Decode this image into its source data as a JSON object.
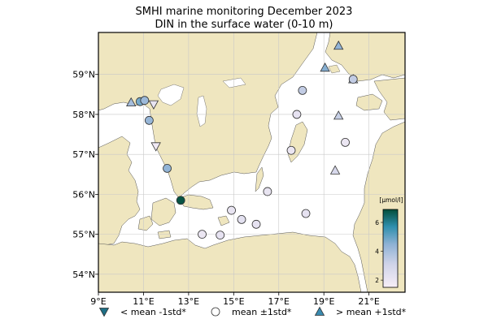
{
  "title_line1": "SMHI marine monitoring December 2023",
  "title_line2": "DIN in the surface water (0-10 m)",
  "colors": {
    "land": "#efe6bf",
    "sea": "#ffffff",
    "gridline": "#c8c8c8",
    "marker_edge": "#333333",
    "below_marker": "#1d6f86",
    "above_marker": "#3a8bb0"
  },
  "map": {
    "lon_range": [
      9,
      22.6
    ],
    "lat_range": [
      53.55,
      60.05
    ],
    "x_ticks": [
      {
        "lon": 9,
        "label": "9°E"
      },
      {
        "lon": 11,
        "label": "11°E"
      },
      {
        "lon": 13,
        "label": "13°E"
      },
      {
        "lon": 15,
        "label": "15°E"
      },
      {
        "lon": 17,
        "label": "17°E"
      },
      {
        "lon": 19,
        "label": "19°E"
      },
      {
        "lon": 21,
        "label": "21°E"
      }
    ],
    "y_ticks": [
      {
        "lat": 54,
        "label": "54°N"
      },
      {
        "lat": 55,
        "label": "55°N"
      },
      {
        "lat": 56,
        "label": "56°N"
      },
      {
        "lat": 57,
        "label": "57°N"
      },
      {
        "lat": 58,
        "label": "58°N"
      },
      {
        "lat": 59,
        "label": "59°N"
      }
    ]
  },
  "colorbar": {
    "unit_label": "[µmol/l]",
    "min": 1.5,
    "max": 6.9,
    "ticks": [
      {
        "value": 2,
        "label": "2"
      },
      {
        "value": 4,
        "label": "4"
      },
      {
        "value": 6,
        "label": "6"
      }
    ]
  },
  "stations": [
    {
      "lon": 10.45,
      "lat": 58.3,
      "marker": "above",
      "din": 4.0
    },
    {
      "lon": 10.85,
      "lat": 58.32,
      "marker": "circle",
      "din": 4.8
    },
    {
      "lon": 11.05,
      "lat": 58.35,
      "marker": "circle",
      "din": 4.2
    },
    {
      "lon": 11.45,
      "lat": 58.25,
      "marker": "below",
      "din": 2.1
    },
    {
      "lon": 11.25,
      "lat": 57.85,
      "marker": "circle",
      "din": 4.3
    },
    {
      "lon": 11.55,
      "lat": 57.2,
      "marker": "below",
      "din": 1.8
    },
    {
      "lon": 12.05,
      "lat": 56.65,
      "marker": "circle",
      "din": 4.4
    },
    {
      "lon": 12.65,
      "lat": 55.85,
      "marker": "circle",
      "din": 6.8
    },
    {
      "lon": 13.6,
      "lat": 55.0,
      "marker": "circle",
      "din": 2.0
    },
    {
      "lon": 14.4,
      "lat": 54.98,
      "marker": "circle",
      "din": 2.2
    },
    {
      "lon": 14.9,
      "lat": 55.6,
      "marker": "circle",
      "din": 2.1
    },
    {
      "lon": 15.35,
      "lat": 55.37,
      "marker": "circle",
      "din": 2.3
    },
    {
      "lon": 16.0,
      "lat": 55.25,
      "marker": "circle",
      "din": 2.2
    },
    {
      "lon": 16.5,
      "lat": 56.07,
      "marker": "circle",
      "din": 2.1
    },
    {
      "lon": 17.55,
      "lat": 57.1,
      "marker": "circle",
      "din": 2.0
    },
    {
      "lon": 17.8,
      "lat": 58.0,
      "marker": "circle",
      "din": 2.2
    },
    {
      "lon": 18.05,
      "lat": 58.6,
      "marker": "circle",
      "din": 3.4
    },
    {
      "lon": 18.2,
      "lat": 55.52,
      "marker": "circle",
      "din": 2.2
    },
    {
      "lon": 19.05,
      "lat": 59.17,
      "marker": "above",
      "din": 4.6
    },
    {
      "lon": 19.5,
      "lat": 56.6,
      "marker": "above",
      "din": 2.8
    },
    {
      "lon": 19.65,
      "lat": 57.97,
      "marker": "above",
      "din": 3.3
    },
    {
      "lon": 19.65,
      "lat": 59.72,
      "marker": "above",
      "din": 4.4
    },
    {
      "lon": 19.95,
      "lat": 57.3,
      "marker": "circle",
      "din": 2.0
    },
    {
      "lon": 20.3,
      "lat": 58.88,
      "marker": "above",
      "din": 3.6
    },
    {
      "lon": 20.3,
      "lat": 58.88,
      "marker": "circle",
      "din": 3.4
    }
  ],
  "legend": [
    {
      "marker": "below",
      "label": "< mean -1std*"
    },
    {
      "marker": "circle",
      "label": "mean ±1std*"
    },
    {
      "marker": "above",
      "label": "> mean +1std*"
    }
  ]
}
